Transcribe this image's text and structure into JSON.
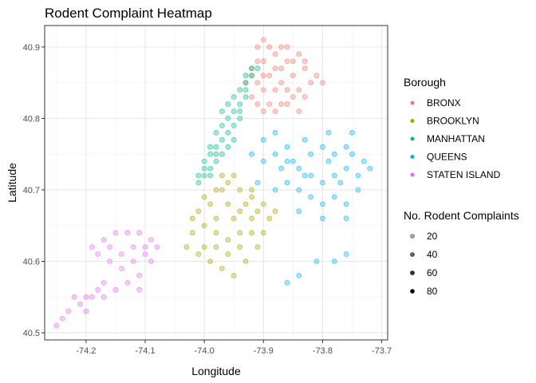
{
  "chart_data": {
    "type": "scatter",
    "title": "Rodent Complaint Heatmap",
    "xlabel": "Longitude",
    "ylabel": "Latitude",
    "xlim": [
      -74.27,
      -73.69
    ],
    "ylim": [
      40.49,
      40.93
    ],
    "x_ticks": [
      -74.2,
      -74.1,
      -74.0,
      -73.9,
      -73.8,
      -73.7
    ],
    "x_tick_labels": [
      "-74.2",
      "-74.1",
      "-74.0",
      "-73.9",
      "-73.8",
      "-73.7"
    ],
    "y_ticks": [
      40.5,
      40.6,
      40.7,
      40.8,
      40.9
    ],
    "y_tick_labels": [
      "40.5",
      "40.6",
      "40.7",
      "40.8",
      "40.9"
    ],
    "grid": true,
    "legend_placement": "right",
    "color_legend": {
      "title": "Borough",
      "entries": [
        {
          "label": "BRONX",
          "color": "#F8766D"
        },
        {
          "label": "BROOKLYN",
          "color": "#A3A500"
        },
        {
          "label": "MANHATTAN",
          "color": "#00BF7D"
        },
        {
          "label": "QUEENS",
          "color": "#00B0F6"
        },
        {
          "label": "STATEN ISLAND",
          "color": "#E76BF3"
        }
      ]
    },
    "alpha_legend": {
      "title": "No. Rodent Complaints",
      "entries": [
        {
          "label": "20",
          "value": 20,
          "alpha": 0.35
        },
        {
          "label": "40",
          "value": 40,
          "alpha": 0.6
        },
        {
          "label": "60",
          "value": 60,
          "alpha": 0.8
        },
        {
          "label": "80",
          "value": 80,
          "alpha": 1.0
        }
      ]
    },
    "series": [
      {
        "name": "BRONX",
        "color": "#F8766D",
        "points": [
          [
            -73.92,
            40.86
          ],
          [
            -73.91,
            40.85
          ],
          [
            -73.9,
            40.84
          ],
          [
            -73.89,
            40.86
          ],
          [
            -73.88,
            40.87
          ],
          [
            -73.87,
            40.85
          ],
          [
            -73.86,
            40.88
          ],
          [
            -73.85,
            40.86
          ],
          [
            -73.9,
            40.88
          ],
          [
            -73.91,
            40.9
          ],
          [
            -73.88,
            40.89
          ],
          [
            -73.86,
            40.84
          ],
          [
            -73.84,
            40.84
          ],
          [
            -73.89,
            40.82
          ],
          [
            -73.9,
            40.81
          ],
          [
            -73.87,
            40.82
          ],
          [
            -73.92,
            40.83
          ],
          [
            -73.85,
            40.83
          ],
          [
            -73.83,
            40.87
          ],
          [
            -73.84,
            40.89
          ],
          [
            -73.9,
            40.91
          ],
          [
            -73.87,
            40.9
          ],
          [
            -73.82,
            40.85
          ],
          [
            -73.81,
            40.86
          ],
          [
            -73.93,
            40.85
          ],
          [
            -73.91,
            40.82
          ],
          [
            -73.88,
            40.84
          ],
          [
            -73.86,
            40.82
          ],
          [
            -73.84,
            40.81
          ],
          [
            -73.83,
            40.83
          ],
          [
            -73.89,
            40.9
          ],
          [
            -73.92,
            40.87
          ],
          [
            -73.8,
            40.85
          ],
          [
            -73.88,
            40.81
          ],
          [
            -73.85,
            40.88
          ],
          [
            -73.86,
            40.9
          ],
          [
            -73.87,
            40.87
          ],
          [
            -73.83,
            40.88
          ],
          [
            -73.91,
            40.88
          ],
          [
            -73.9,
            40.86
          ]
        ]
      },
      {
        "name": "MANHATTAN",
        "color": "#00BF7D",
        "points": [
          [
            -74.01,
            40.71
          ],
          [
            -74.0,
            40.72
          ],
          [
            -73.99,
            40.73
          ],
          [
            -73.98,
            40.74
          ],
          [
            -73.99,
            40.75
          ],
          [
            -73.98,
            40.76
          ],
          [
            -73.97,
            40.77
          ],
          [
            -73.96,
            40.78
          ],
          [
            -73.95,
            40.79
          ],
          [
            -73.94,
            40.8
          ],
          [
            -73.95,
            40.81
          ],
          [
            -73.94,
            40.82
          ],
          [
            -73.93,
            40.83
          ],
          [
            -73.94,
            40.84
          ],
          [
            -73.93,
            40.85
          ],
          [
            -73.92,
            40.86
          ],
          [
            -74.0,
            40.74
          ],
          [
            -73.99,
            40.76
          ],
          [
            -73.97,
            40.75
          ],
          [
            -73.98,
            40.78
          ],
          [
            -73.96,
            40.8
          ],
          [
            -73.95,
            40.83
          ],
          [
            -73.93,
            40.84
          ],
          [
            -73.92,
            40.87
          ],
          [
            -74.01,
            40.72
          ],
          [
            -73.97,
            40.79
          ],
          [
            -73.95,
            40.77
          ],
          [
            -73.94,
            40.81
          ],
          [
            -74.0,
            40.73
          ],
          [
            -73.96,
            40.76
          ],
          [
            -73.99,
            40.72
          ],
          [
            -73.98,
            40.75
          ],
          [
            -73.93,
            40.86
          ],
          [
            -73.91,
            40.87
          ],
          [
            -73.96,
            40.82
          ],
          [
            -73.97,
            40.81
          ]
        ]
      },
      {
        "name": "QUEENS",
        "color": "#00B0F6",
        "points": [
          [
            -73.92,
            40.75
          ],
          [
            -73.9,
            40.74
          ],
          [
            -73.88,
            40.75
          ],
          [
            -73.86,
            40.74
          ],
          [
            -73.84,
            40.73
          ],
          [
            -73.82,
            40.72
          ],
          [
            -73.8,
            40.71
          ],
          [
            -73.78,
            40.72
          ],
          [
            -73.76,
            40.73
          ],
          [
            -73.74,
            40.72
          ],
          [
            -73.88,
            40.7
          ],
          [
            -73.86,
            40.71
          ],
          [
            -73.84,
            40.7
          ],
          [
            -73.82,
            40.69
          ],
          [
            -73.8,
            40.68
          ],
          [
            -73.78,
            40.69
          ],
          [
            -73.76,
            40.68
          ],
          [
            -73.74,
            40.7
          ],
          [
            -73.9,
            40.77
          ],
          [
            -73.88,
            40.78
          ],
          [
            -73.86,
            40.76
          ],
          [
            -73.83,
            40.77
          ],
          [
            -73.8,
            40.76
          ],
          [
            -73.78,
            40.75
          ],
          [
            -73.76,
            40.76
          ],
          [
            -73.75,
            40.78
          ],
          [
            -73.73,
            40.74
          ],
          [
            -73.72,
            40.73
          ],
          [
            -73.79,
            40.78
          ],
          [
            -73.82,
            40.75
          ],
          [
            -73.84,
            40.67
          ],
          [
            -73.8,
            40.66
          ],
          [
            -73.76,
            40.66
          ],
          [
            -73.81,
            40.6
          ],
          [
            -73.78,
            40.6
          ],
          [
            -73.76,
            40.61
          ],
          [
            -73.84,
            40.58
          ],
          [
            -73.86,
            40.57
          ],
          [
            -73.91,
            40.71
          ],
          [
            -73.85,
            40.74
          ],
          [
            -73.87,
            40.73
          ],
          [
            -73.83,
            40.72
          ],
          [
            -73.77,
            40.71
          ],
          [
            -73.79,
            40.74
          ],
          [
            -73.75,
            40.75
          ]
        ]
      },
      {
        "name": "BROOKLYN",
        "color": "#A3A500",
        "points": [
          [
            -74.0,
            40.69
          ],
          [
            -73.98,
            40.7
          ],
          [
            -73.96,
            40.71
          ],
          [
            -73.94,
            40.7
          ],
          [
            -73.92,
            40.69
          ],
          [
            -73.9,
            40.68
          ],
          [
            -73.88,
            40.67
          ],
          [
            -73.96,
            40.68
          ],
          [
            -73.94,
            40.67
          ],
          [
            -73.92,
            40.66
          ],
          [
            -73.98,
            40.66
          ],
          [
            -74.0,
            40.65
          ],
          [
            -74.02,
            40.64
          ],
          [
            -74.03,
            40.62
          ],
          [
            -74.01,
            40.61
          ],
          [
            -73.99,
            40.6
          ],
          [
            -73.97,
            40.59
          ],
          [
            -73.95,
            40.58
          ],
          [
            -73.93,
            40.6
          ],
          [
            -73.91,
            40.62
          ],
          [
            -73.9,
            40.64
          ],
          [
            -73.96,
            40.63
          ],
          [
            -73.94,
            40.64
          ],
          [
            -73.98,
            40.64
          ],
          [
            -73.95,
            40.66
          ],
          [
            -73.93,
            40.68
          ],
          [
            -73.97,
            40.7
          ],
          [
            -73.99,
            40.68
          ],
          [
            -74.01,
            40.67
          ],
          [
            -73.92,
            40.7
          ],
          [
            -73.96,
            40.61
          ],
          [
            -73.94,
            40.62
          ],
          [
            -73.92,
            40.64
          ],
          [
            -74.0,
            40.62
          ],
          [
            -73.98,
            40.62
          ],
          [
            -74.02,
            40.66
          ],
          [
            -73.95,
            40.72
          ],
          [
            -73.97,
            40.72
          ],
          [
            -73.91,
            40.67
          ],
          [
            -73.89,
            40.66
          ]
        ]
      },
      {
        "name": "STATEN ISLAND",
        "color": "#E76BF3",
        "points": [
          [
            -74.17,
            40.63
          ],
          [
            -74.15,
            40.64
          ],
          [
            -74.13,
            40.64
          ],
          [
            -74.11,
            40.64
          ],
          [
            -74.09,
            40.63
          ],
          [
            -74.08,
            40.62
          ],
          [
            -74.1,
            40.61
          ],
          [
            -74.12,
            40.6
          ],
          [
            -74.14,
            40.59
          ],
          [
            -74.16,
            40.6
          ],
          [
            -74.18,
            40.61
          ],
          [
            -74.19,
            40.62
          ],
          [
            -74.17,
            40.57
          ],
          [
            -74.15,
            40.56
          ],
          [
            -74.13,
            40.57
          ],
          [
            -74.11,
            40.58
          ],
          [
            -74.19,
            40.55
          ],
          [
            -74.21,
            40.54
          ],
          [
            -74.23,
            40.53
          ],
          [
            -74.25,
            40.51
          ],
          [
            -74.24,
            40.52
          ],
          [
            -74.2,
            40.55
          ],
          [
            -74.18,
            40.56
          ],
          [
            -74.14,
            40.61
          ],
          [
            -74.12,
            40.62
          ],
          [
            -74.1,
            40.62
          ],
          [
            -74.16,
            40.62
          ],
          [
            -74.09,
            40.6
          ],
          [
            -74.11,
            40.56
          ],
          [
            -74.22,
            40.55
          ],
          [
            -74.2,
            40.53
          ],
          [
            -74.17,
            40.55
          ]
        ]
      }
    ]
  }
}
